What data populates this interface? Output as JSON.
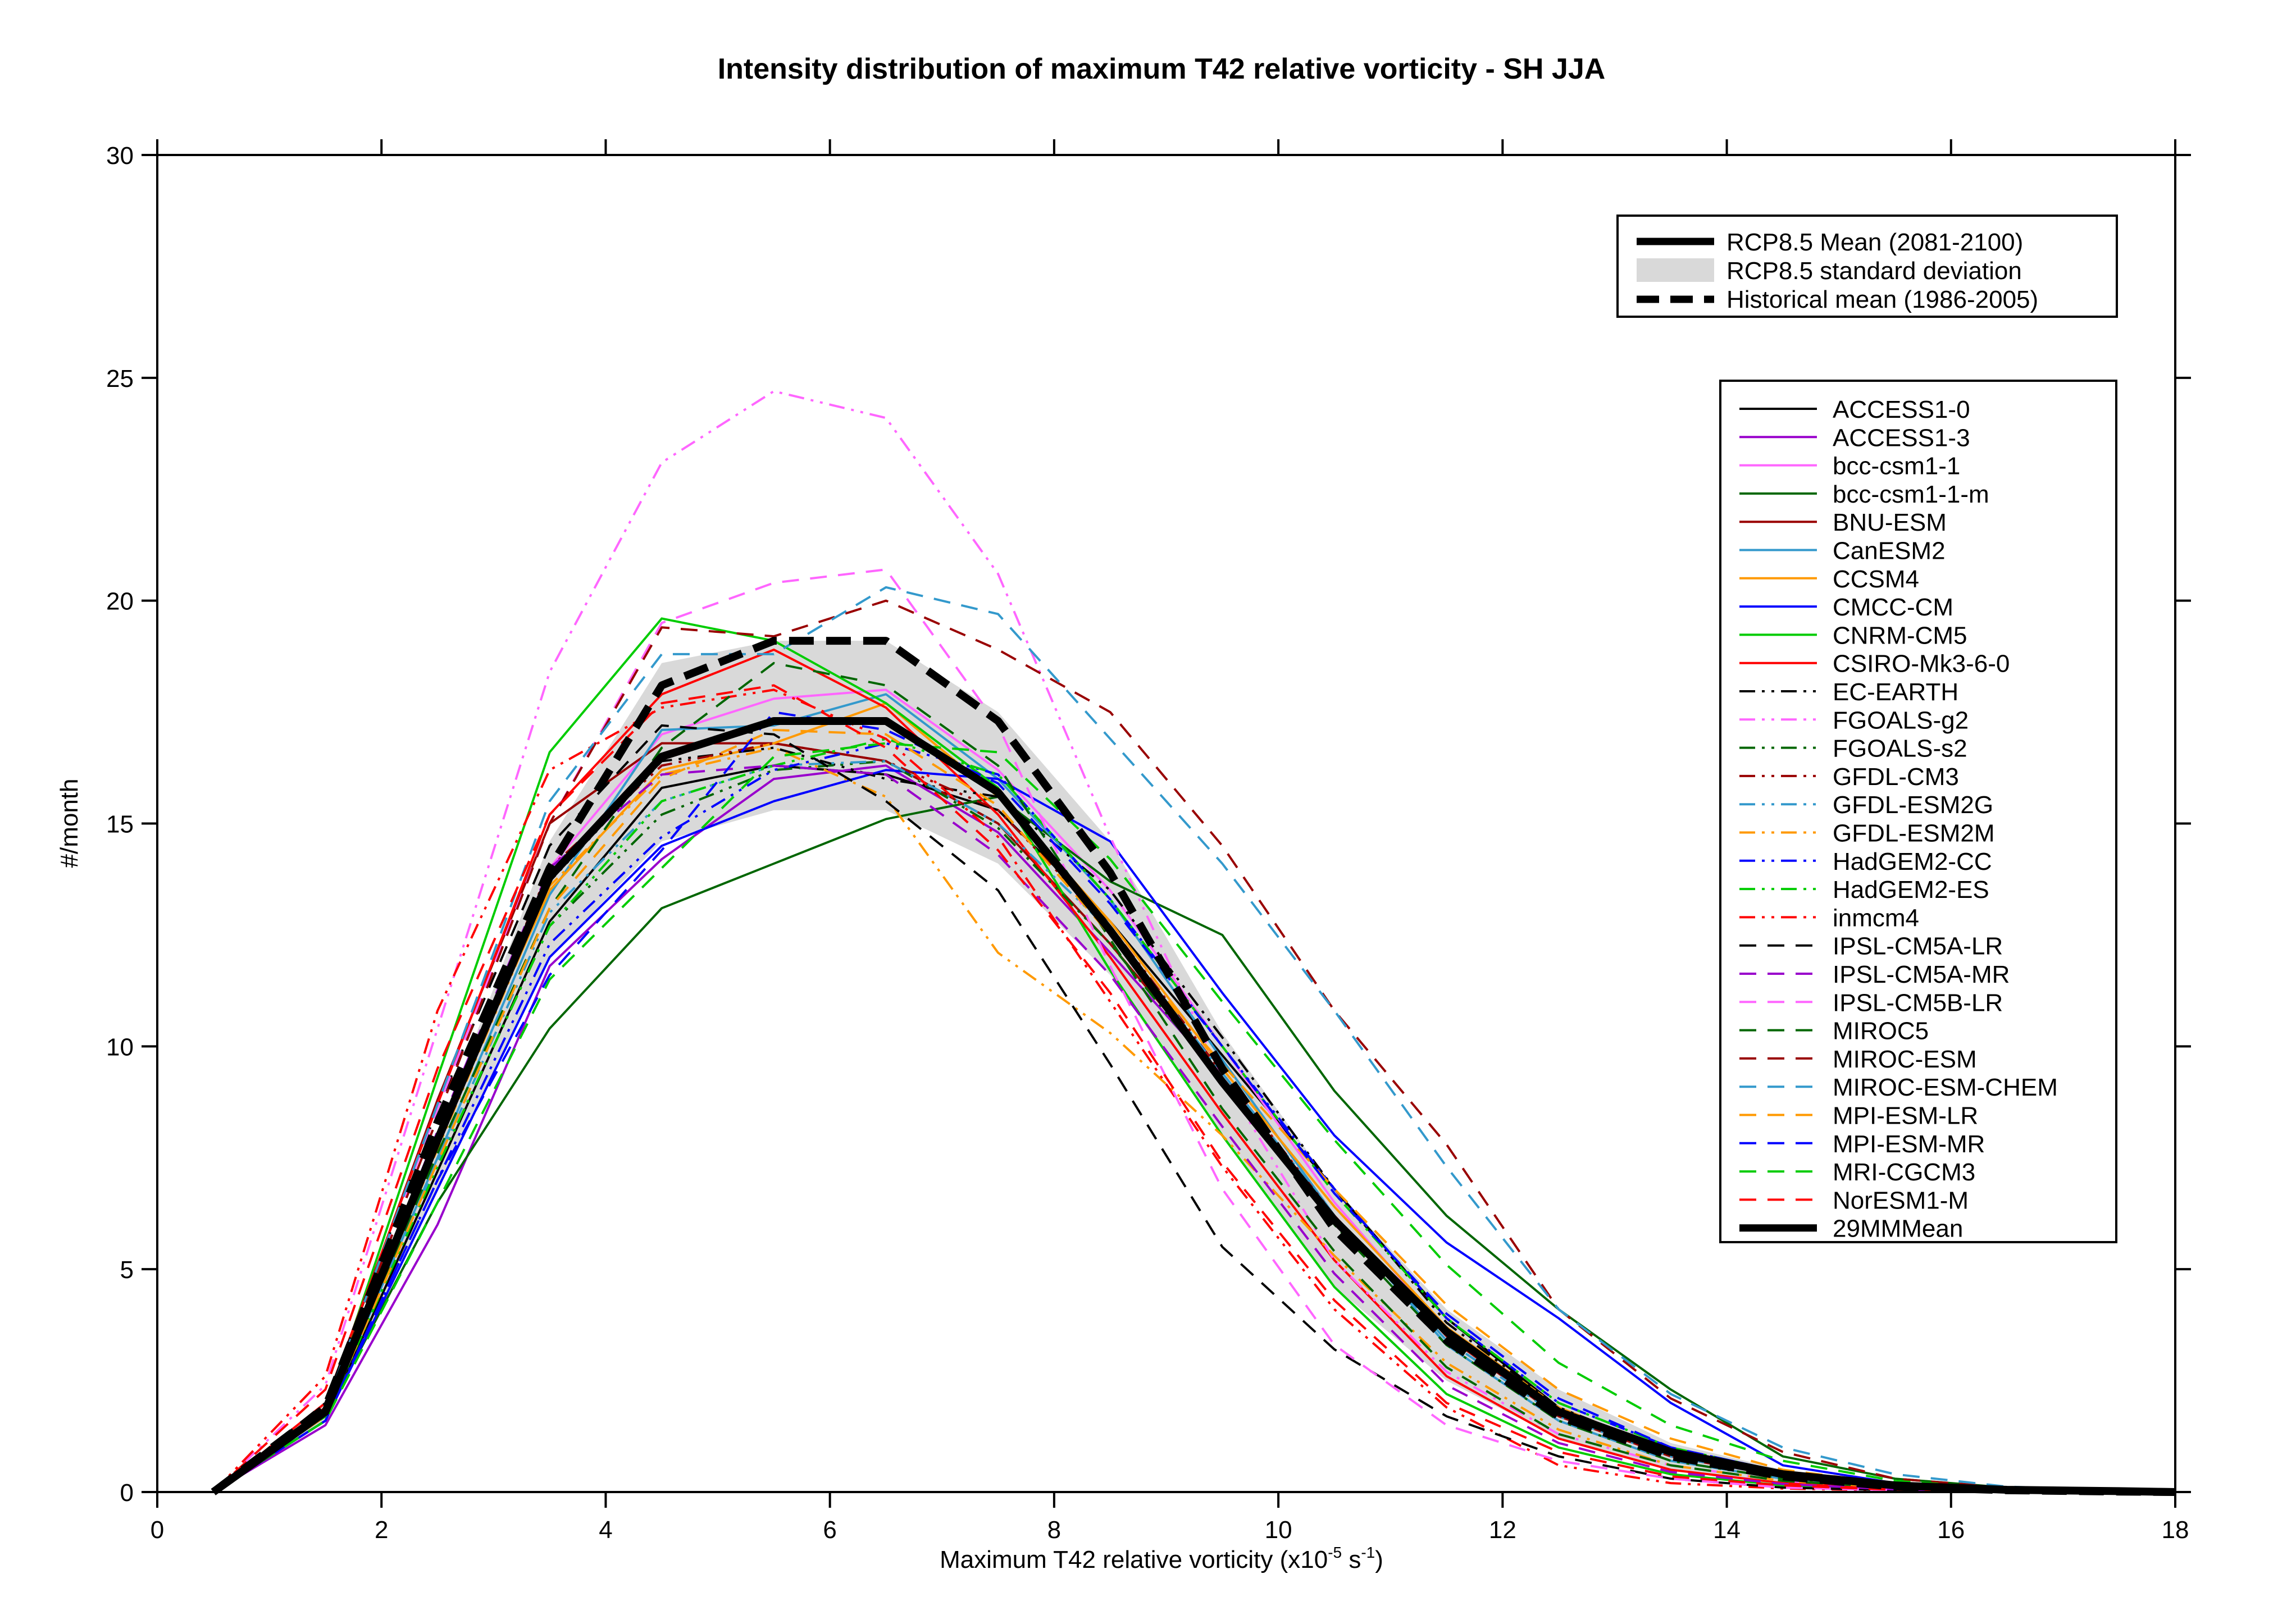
{
  "chart_data": {
    "type": "line",
    "title": "Intensity distribution of maximum T42 relative vorticity - SH JJA",
    "xlabel": "Maximum T42 relative vorticity (x10",
    "xlabel_exp1": "-5",
    "xlabel_mid": " s",
    "xlabel_exp2": "-1",
    "xlabel_end": ")",
    "ylabel": "#/month",
    "xlim": [
      0,
      18
    ],
    "ylim": [
      0,
      30
    ],
    "xticks": [
      0,
      2,
      4,
      6,
      8,
      10,
      12,
      14,
      16,
      18
    ],
    "yticks": [
      0,
      5,
      10,
      15,
      20,
      25,
      30
    ],
    "x": [
      0.5,
      1.5,
      2.5,
      3.5,
      4.5,
      5.5,
      6.5,
      7.5,
      8.5,
      9.5,
      10.5,
      11.5,
      12.5,
      13.5,
      14.5,
      15.5,
      16.5,
      17.5,
      18
    ],
    "summary_legend": [
      {
        "label": "RCP8.5 Mean (2081-2100)",
        "style": "thick-solid"
      },
      {
        "label": "RCP8.5 standard deviation",
        "style": "band"
      },
      {
        "label": "Historical mean (1986-2005)",
        "style": "thick-dashed"
      }
    ],
    "std_band": {
      "upper": [
        0.05,
        2.0,
        8.0,
        14.6,
        18.6,
        19.1,
        19.1,
        17.5,
        14.6,
        10.3,
        6.8,
        4.1,
        2.3,
        1.1,
        0.5,
        0.2,
        0.08,
        0.03,
        0.0
      ],
      "lower": [
        0.0,
        1.6,
        6.8,
        12.0,
        14.6,
        15.3,
        15.3,
        14.1,
        11.6,
        8.0,
        4.6,
        2.5,
        1.2,
        0.5,
        0.2,
        0.05,
        0.0,
        0.0,
        0.0
      ],
      "color": "#d9d9d9"
    },
    "historical_mean": [
      0.0,
      1.9,
      8.3,
      14.0,
      18.1,
      19.1,
      19.1,
      17.3,
      13.9,
      9.5,
      5.9,
      3.4,
      1.7,
      0.8,
      0.35,
      0.12,
      0.04,
      0.01,
      0.0
    ],
    "series": [
      {
        "name": "ACCESS1-0",
        "color": "#000000",
        "dash": "solid",
        "values": [
          0.0,
          1.6,
          7.2,
          12.8,
          15.8,
          16.3,
          16.1,
          15.3,
          12.8,
          9.8,
          6.8,
          3.9,
          1.9,
          0.9,
          0.4,
          0.15,
          0.05,
          0.02,
          0.0
        ]
      },
      {
        "name": "ACCESS1-3",
        "color": "#9900cc",
        "dash": "solid",
        "values": [
          0.0,
          1.5,
          6.0,
          11.8,
          14.2,
          16.0,
          16.3,
          14.8,
          12.1,
          9.3,
          6.2,
          3.5,
          1.8,
          0.8,
          0.35,
          0.12,
          0.04,
          0.01,
          0.0
        ]
      },
      {
        "name": "bcc-csm1-1",
        "color": "#ff66ff",
        "dash": "solid",
        "values": [
          0.0,
          1.8,
          7.8,
          14.0,
          17.0,
          17.8,
          18.0,
          16.2,
          13.5,
          10.0,
          6.5,
          3.6,
          1.9,
          0.9,
          0.4,
          0.15,
          0.05,
          0.02,
          0.0
        ]
      },
      {
        "name": "bcc-csm1-1-m",
        "color": "#006600",
        "dash": "solid",
        "values": [
          0.0,
          1.7,
          6.5,
          10.4,
          13.1,
          14.1,
          15.1,
          15.6,
          13.7,
          12.5,
          9.0,
          6.2,
          4.1,
          2.3,
          0.8,
          0.3,
          0.1,
          0.03,
          0.0
        ]
      },
      {
        "name": "BNU-ESM",
        "color": "#990000",
        "dash": "solid",
        "values": [
          0.0,
          1.9,
          8.8,
          15.0,
          16.8,
          16.8,
          16.4,
          15.0,
          12.3,
          9.3,
          6.2,
          3.5,
          1.7,
          0.8,
          0.35,
          0.12,
          0.04,
          0.01,
          0.0
        ]
      },
      {
        "name": "CanESM2",
        "color": "#3399cc",
        "dash": "solid",
        "values": [
          0.0,
          1.7,
          7.5,
          13.4,
          17.1,
          17.2,
          17.9,
          16.0,
          13.3,
          9.7,
          6.2,
          3.3,
          1.6,
          0.7,
          0.3,
          0.1,
          0.03,
          0.01,
          0.0
        ]
      },
      {
        "name": "CCSM4",
        "color": "#ff9900",
        "dash": "solid",
        "values": [
          0.0,
          1.8,
          8.0,
          13.5,
          16.2,
          16.8,
          17.7,
          15.6,
          12.8,
          9.5,
          6.4,
          3.7,
          1.9,
          0.9,
          0.4,
          0.15,
          0.05,
          0.02,
          0.0
        ]
      },
      {
        "name": "CMCC-CM",
        "color": "#0000ff",
        "dash": "solid",
        "values": [
          0.0,
          1.6,
          6.8,
          12.0,
          14.5,
          15.5,
          16.2,
          16.0,
          14.6,
          11.2,
          8.0,
          5.6,
          3.9,
          2.0,
          0.6,
          0.2,
          0.08,
          0.03,
          0.0
        ]
      },
      {
        "name": "CNRM-CM5",
        "color": "#00cc00",
        "dash": "solid",
        "values": [
          0.0,
          1.8,
          9.3,
          16.6,
          19.6,
          19.1,
          17.7,
          15.8,
          11.7,
          8.0,
          4.6,
          2.2,
          1.0,
          0.4,
          0.15,
          0.05,
          0.02,
          0.0,
          0.0
        ]
      },
      {
        "name": "CSIRO-Mk3-6-0",
        "color": "#ff0000",
        "dash": "solid",
        "values": [
          0.0,
          2.0,
          8.7,
          15.2,
          17.9,
          18.9,
          17.6,
          15.2,
          12.0,
          8.5,
          5.2,
          2.6,
          1.2,
          0.5,
          0.2,
          0.07,
          0.02,
          0.0,
          0.0
        ]
      },
      {
        "name": "EC-EARTH",
        "color": "#000000",
        "dash": "dashdotdot",
        "values": [
          0.0,
          1.8,
          7.9,
          13.7,
          16.4,
          16.7,
          16.0,
          15.6,
          13.5,
          10.2,
          6.8,
          3.8,
          1.9,
          0.9,
          0.4,
          0.15,
          0.05,
          0.02,
          0.0
        ]
      },
      {
        "name": "FGOALS-g2",
        "color": "#ff66ff",
        "dash": "dashdotdot",
        "values": [
          0.0,
          2.4,
          10.4,
          18.4,
          23.1,
          24.7,
          24.1,
          20.6,
          14.7,
          9.3,
          5.2,
          2.7,
          1.3,
          0.6,
          0.25,
          0.1,
          0.03,
          0.01,
          0.0
        ]
      },
      {
        "name": "FGOALS-s2",
        "color": "#006600",
        "dash": "dashdotdot",
        "values": [
          0.0,
          1.7,
          7.3,
          12.7,
          15.2,
          16.2,
          16.4,
          14.9,
          12.3,
          9.2,
          6.0,
          3.3,
          1.6,
          0.7,
          0.3,
          0.1,
          0.03,
          0.01,
          0.0
        ]
      },
      {
        "name": "GFDL-CM3",
        "color": "#990000",
        "dash": "dashdotdot",
        "values": [
          0.0,
          1.8,
          8.0,
          14.0,
          16.3,
          16.8,
          16.4,
          15.3,
          12.7,
          9.4,
          6.2,
          3.5,
          1.7,
          0.8,
          0.35,
          0.12,
          0.04,
          0.01,
          0.0
        ]
      },
      {
        "name": "GFDL-ESM2G",
        "color": "#3399cc",
        "dash": "dashdotdot",
        "values": [
          0.0,
          1.7,
          7.4,
          13.0,
          15.5,
          16.3,
          16.4,
          15.0,
          12.6,
          9.4,
          6.2,
          3.4,
          1.7,
          0.8,
          0.35,
          0.12,
          0.04,
          0.01,
          0.0
        ]
      },
      {
        "name": "GFDL-ESM2M",
        "color": "#ff9900",
        "dash": "dashdotdot",
        "values": [
          0.0,
          1.7,
          7.7,
          13.6,
          16.1,
          16.7,
          15.6,
          12.1,
          10.3,
          8.0,
          5.3,
          2.9,
          1.4,
          0.6,
          0.25,
          0.1,
          0.03,
          0.01,
          0.0
        ]
      },
      {
        "name": "HadGEM2-CC",
        "color": "#0000ff",
        "dash": "dashdotdot",
        "values": [
          0.0,
          1.6,
          7.0,
          12.3,
          14.7,
          16.2,
          16.8,
          16.1,
          13.3,
          10.0,
          6.8,
          3.9,
          2.0,
          1.0,
          0.45,
          0.15,
          0.05,
          0.02,
          0.0
        ]
      },
      {
        "name": "HadGEM2-ES",
        "color": "#00cc00",
        "dash": "dashdotdot",
        "values": [
          0.0,
          1.7,
          7.3,
          12.7,
          15.5,
          16.3,
          16.9,
          16.1,
          13.3,
          10.0,
          6.7,
          3.9,
          2.0,
          1.0,
          0.45,
          0.15,
          0.05,
          0.02,
          0.0
        ]
      },
      {
        "name": "inmcm4",
        "color": "#ff0000",
        "dash": "dashdotdot",
        "values": [
          0.0,
          2.6,
          10.8,
          16.2,
          17.6,
          18.0,
          16.9,
          14.7,
          11.0,
          7.3,
          4.1,
          1.9,
          0.6,
          0.2,
          0.08,
          0.03,
          0.01,
          0.0,
          0.0
        ]
      },
      {
        "name": "IPSL-CM5A-LR",
        "color": "#000000",
        "dash": "dashed",
        "values": [
          0.0,
          2.0,
          8.6,
          14.5,
          17.2,
          17.0,
          15.5,
          13.5,
          9.6,
          5.5,
          3.2,
          1.7,
          0.8,
          0.3,
          0.1,
          0.04,
          0.01,
          0.0,
          0.0
        ]
      },
      {
        "name": "IPSL-CM5A-MR",
        "color": "#9900cc",
        "dash": "dashed",
        "values": [
          0.0,
          1.8,
          8.1,
          14.0,
          16.1,
          16.3,
          16.1,
          14.3,
          11.6,
          8.2,
          4.9,
          2.4,
          1.1,
          0.45,
          0.18,
          0.06,
          0.02,
          0.0,
          0.0
        ]
      },
      {
        "name": "IPSL-CM5B-LR",
        "color": "#ff66ff",
        "dash": "dashed",
        "values": [
          0.0,
          1.9,
          8.6,
          15.0,
          19.5,
          20.4,
          20.7,
          17.2,
          11.8,
          6.8,
          3.3,
          1.5,
          0.7,
          0.3,
          0.1,
          0.04,
          0.01,
          0.0,
          0.0
        ]
      },
      {
        "name": "MIROC5",
        "color": "#006600",
        "dash": "dashed",
        "values": [
          0.0,
          1.7,
          7.6,
          13.1,
          16.7,
          18.6,
          18.1,
          16.3,
          12.4,
          8.6,
          5.4,
          2.8,
          1.3,
          0.6,
          0.25,
          0.1,
          0.03,
          0.01,
          0.0
        ]
      },
      {
        "name": "MIROC-ESM",
        "color": "#990000",
        "dash": "dashed",
        "values": [
          0.0,
          1.9,
          8.4,
          15.0,
          19.4,
          19.2,
          20.0,
          18.9,
          17.5,
          14.5,
          10.8,
          7.8,
          4.1,
          2.1,
          0.9,
          0.3,
          0.1,
          0.03,
          0.0
        ]
      },
      {
        "name": "MIROC-ESM-CHEM",
        "color": "#3399cc",
        "dash": "dashed",
        "values": [
          0.0,
          1.9,
          8.7,
          15.5,
          18.8,
          18.8,
          20.3,
          19.7,
          16.9,
          14.1,
          10.8,
          7.3,
          4.1,
          2.2,
          1.0,
          0.4,
          0.12,
          0.04,
          0.0
        ]
      },
      {
        "name": "MPI-ESM-LR",
        "color": "#ff9900",
        "dash": "dashed",
        "values": [
          0.0,
          1.7,
          7.4,
          13.1,
          16.0,
          17.1,
          17.0,
          15.4,
          12.5,
          9.6,
          6.8,
          4.2,
          2.3,
          1.2,
          0.5,
          0.18,
          0.06,
          0.02,
          0.0
        ]
      },
      {
        "name": "MPI-ESM-MR",
        "color": "#0000ff",
        "dash": "dashed",
        "values": [
          0.0,
          1.6,
          7.0,
          11.6,
          14.4,
          17.5,
          17.1,
          15.9,
          13.2,
          10.0,
          6.7,
          4.0,
          2.1,
          1.0,
          0.45,
          0.15,
          0.05,
          0.02,
          0.0
        ]
      },
      {
        "name": "MRI-CGCM3",
        "color": "#00cc00",
        "dash": "dashed",
        "values": [
          0.0,
          1.6,
          6.5,
          11.5,
          14.0,
          16.5,
          16.8,
          16.6,
          14.2,
          11.0,
          7.9,
          5.1,
          2.9,
          1.5,
          0.7,
          0.25,
          0.08,
          0.03,
          0.0
        ]
      },
      {
        "name": "NorESM1-M",
        "color": "#ff0000",
        "dash": "dashed",
        "values": [
          0.0,
          2.3,
          9.5,
          15.2,
          17.7,
          18.1,
          16.7,
          14.4,
          11.2,
          7.4,
          4.3,
          2.0,
          0.9,
          0.35,
          0.15,
          0.05,
          0.02,
          0.0,
          0.0
        ]
      }
    ],
    "mm_mean": {
      "name": "29MMMean",
      "color": "#000000",
      "dash": "solid",
      "values": [
        0.0,
        1.8,
        7.9,
        13.8,
        16.5,
        17.3,
        17.3,
        15.7,
        12.6,
        9.2,
        6.1,
        3.6,
        1.8,
        0.9,
        0.4,
        0.15,
        0.05,
        0.02,
        0.0
      ]
    }
  }
}
